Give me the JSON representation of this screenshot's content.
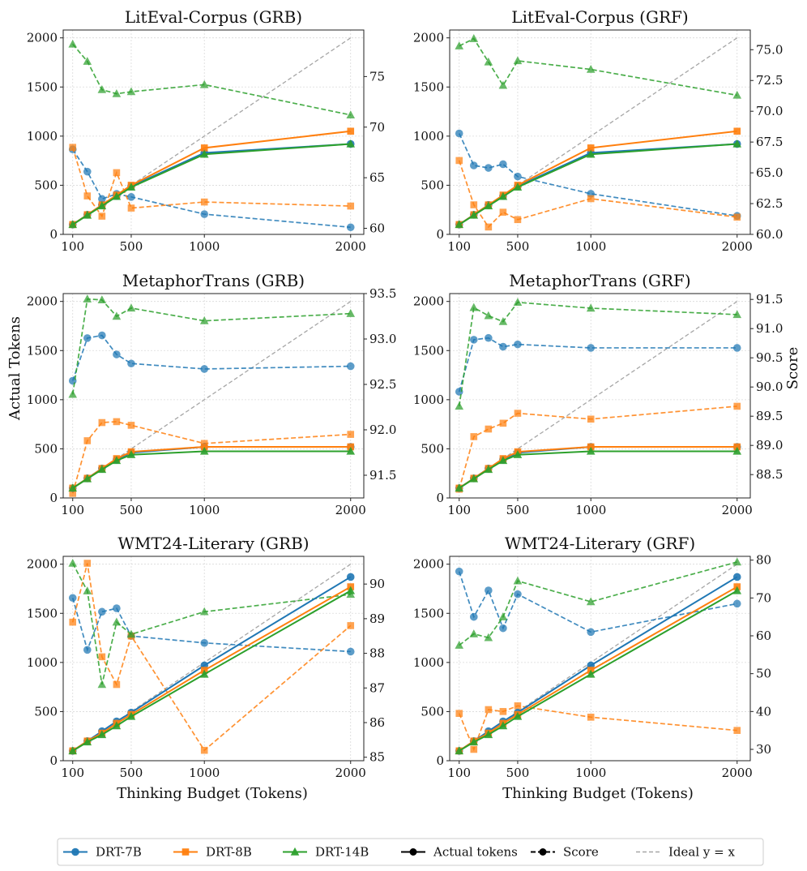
{
  "figure": {
    "ylabel_left": "Actual Tokens",
    "ylabel_right": "Score",
    "xlabel": "Thinking Budget (Tokens)"
  },
  "legend": {
    "entries": [
      {
        "label": "DRT-7B",
        "kind": "model",
        "color": "#1f77b4",
        "marker": "circle"
      },
      {
        "label": "DRT-8B",
        "kind": "model",
        "color": "#ff7f0e",
        "marker": "square"
      },
      {
        "label": "DRT-14B",
        "kind": "model",
        "color": "#2ca02c",
        "marker": "triangle"
      },
      {
        "label": "Actual tokens",
        "kind": "solid"
      },
      {
        "label": "Score",
        "kind": "dashed"
      },
      {
        "label": "Ideal y = x",
        "kind": "ideal"
      }
    ]
  },
  "chart_data": [
    {
      "type": "line",
      "title": "LitEval-Corpus (GRB)",
      "x": [
        100,
        200,
        300,
        400,
        500,
        1000,
        2000
      ],
      "xticks": [
        100,
        500,
        1000,
        2000
      ],
      "ylim": [
        0,
        2080
      ],
      "yticks": [
        0,
        500,
        1000,
        1500,
        2000
      ],
      "score_lim": [
        59.4,
        79.6
      ],
      "score_ticks": [
        60,
        65,
        70,
        75
      ],
      "actual_tokens": [
        {
          "name": "DRT-7B",
          "values": [
            100,
            200,
            300,
            390,
            490,
            830,
            920
          ]
        },
        {
          "name": "DRT-8B",
          "values": [
            100,
            200,
            300,
            400,
            500,
            880,
            1050
          ]
        },
        {
          "name": "DRT-14B",
          "values": [
            100,
            195,
            290,
            385,
            480,
            815,
            920
          ]
        }
      ],
      "score": [
        {
          "name": "DRT-7B",
          "values": [
            67.8,
            65.6,
            62.9,
            63.4,
            63.1,
            61.4,
            60.1
          ]
        },
        {
          "name": "DRT-8B",
          "values": [
            68.0,
            63.2,
            61.2,
            65.5,
            62.0,
            62.6,
            62.2
          ]
        },
        {
          "name": "DRT-14B",
          "values": [
            78.2,
            76.5,
            73.7,
            73.3,
            73.5,
            74.2,
            71.2
          ]
        }
      ]
    },
    {
      "type": "line",
      "title": "LitEval-Corpus (GRF)",
      "x": [
        100,
        200,
        300,
        400,
        500,
        1000,
        2000
      ],
      "xticks": [
        100,
        500,
        1000,
        2000
      ],
      "ylim": [
        0,
        2080
      ],
      "yticks": [
        0,
        500,
        1000,
        1500,
        2000
      ],
      "score_lim": [
        60.0,
        76.6
      ],
      "score_ticks": [
        60.0,
        62.5,
        65.0,
        67.5,
        70.0,
        72.5,
        75.0
      ],
      "actual_tokens": [
        {
          "name": "DRT-7B",
          "values": [
            100,
            200,
            300,
            390,
            490,
            830,
            920
          ]
        },
        {
          "name": "DRT-8B",
          "values": [
            100,
            200,
            300,
            400,
            500,
            880,
            1050
          ]
        },
        {
          "name": "DRT-14B",
          "values": [
            100,
            195,
            290,
            385,
            480,
            815,
            920
          ]
        }
      ],
      "score": [
        {
          "name": "DRT-7B",
          "values": [
            68.2,
            65.6,
            65.4,
            65.7,
            64.7,
            63.3,
            61.5
          ]
        },
        {
          "name": "DRT-8B",
          "values": [
            66.0,
            62.4,
            60.6,
            61.8,
            61.2,
            62.9,
            61.4
          ]
        },
        {
          "name": "DRT-14B",
          "values": [
            75.3,
            75.9,
            74.0,
            72.1,
            74.1,
            73.4,
            71.3
          ]
        }
      ]
    },
    {
      "type": "line",
      "title": "MetaphorTrans (GRB)",
      "x": [
        100,
        200,
        300,
        400,
        500,
        1000,
        2000
      ],
      "xticks": [
        100,
        500,
        1000,
        2000
      ],
      "ylim": [
        0,
        2080
      ],
      "yticks": [
        0,
        500,
        1000,
        1500,
        2000
      ],
      "score_lim": [
        91.25,
        93.5
      ],
      "score_ticks": [
        91.5,
        92.0,
        92.5,
        93.0,
        93.5
      ],
      "actual_tokens": [
        {
          "name": "DRT-7B",
          "values": [
            100,
            200,
            300,
            390,
            460,
            520,
            520
          ]
        },
        {
          "name": "DRT-8B",
          "values": [
            100,
            200,
            300,
            400,
            470,
            520,
            520
          ]
        },
        {
          "name": "DRT-14B",
          "values": [
            100,
            195,
            290,
            380,
            440,
            475,
            475
          ]
        }
      ],
      "score": [
        {
          "name": "DRT-7B",
          "values": [
            92.54,
            93.01,
            93.04,
            92.83,
            92.73,
            92.67,
            92.7
          ]
        },
        {
          "name": "DRT-8B",
          "values": [
            91.3,
            91.88,
            92.08,
            92.09,
            92.05,
            91.85,
            91.95
          ]
        },
        {
          "name": "DRT-14B",
          "values": [
            92.39,
            93.44,
            93.43,
            93.25,
            93.34,
            93.2,
            93.28
          ]
        }
      ]
    },
    {
      "type": "line",
      "title": "MetaphorTrans (GRF)",
      "x": [
        100,
        200,
        300,
        400,
        500,
        1000,
        2000
      ],
      "xticks": [
        100,
        500,
        1000,
        2000
      ],
      "ylim": [
        0,
        2080
      ],
      "yticks": [
        0,
        500,
        1000,
        1500,
        2000
      ],
      "score_lim": [
        88.1,
        91.6
      ],
      "score_ticks": [
        88.5,
        89.0,
        89.5,
        90.0,
        90.5,
        91.0,
        91.5
      ],
      "actual_tokens": [
        {
          "name": "DRT-7B",
          "values": [
            100,
            200,
            300,
            390,
            460,
            520,
            520
          ]
        },
        {
          "name": "DRT-8B",
          "values": [
            100,
            200,
            300,
            400,
            470,
            520,
            520
          ]
        },
        {
          "name": "DRT-14B",
          "values": [
            100,
            195,
            290,
            380,
            440,
            475,
            475
          ]
        }
      ],
      "score": [
        {
          "name": "DRT-7B",
          "values": [
            89.92,
            90.81,
            90.84,
            90.69,
            90.73,
            90.67,
            90.67
          ]
        },
        {
          "name": "DRT-8B",
          "values": [
            88.25,
            89.15,
            89.28,
            89.38,
            89.55,
            89.45,
            89.67
          ]
        },
        {
          "name": "DRT-14B",
          "values": [
            89.67,
            91.36,
            91.22,
            91.12,
            91.45,
            91.35,
            91.24
          ]
        }
      ]
    },
    {
      "type": "line",
      "title": "WMT24-Literary (GRB)",
      "x": [
        100,
        200,
        300,
        400,
        500,
        1000,
        2000
      ],
      "xticks": [
        100,
        500,
        1000,
        2000
      ],
      "ylim": [
        0,
        2080
      ],
      "yticks": [
        0,
        500,
        1000,
        1500,
        2000
      ],
      "score_lim": [
        84.9,
        90.8
      ],
      "score_ticks": [
        85,
        86,
        87,
        88,
        89,
        90
      ],
      "actual_tokens": [
        {
          "name": "DRT-7B",
          "values": [
            100,
            200,
            300,
            400,
            490,
            970,
            1870
          ]
        },
        {
          "name": "DRT-8B",
          "values": [
            100,
            200,
            280,
            380,
            470,
            920,
            1770
          ]
        },
        {
          "name": "DRT-14B",
          "values": [
            100,
            190,
            265,
            355,
            450,
            880,
            1730
          ]
        }
      ],
      "score": [
        {
          "name": "DRT-7B",
          "values": [
            89.6,
            88.1,
            89.2,
            89.3,
            88.5,
            88.3,
            88.05
          ]
        },
        {
          "name": "DRT-8B",
          "values": [
            88.9,
            90.6,
            87.9,
            87.1,
            88.5,
            85.2,
            88.8
          ]
        },
        {
          "name": "DRT-14B",
          "values": [
            90.6,
            89.8,
            87.1,
            88.9,
            88.55,
            89.2,
            89.7
          ]
        }
      ]
    },
    {
      "type": "line",
      "title": "WMT24-Literary (GRF)",
      "x": [
        100,
        200,
        300,
        400,
        500,
        1000,
        2000
      ],
      "xticks": [
        100,
        500,
        1000,
        2000
      ],
      "ylim": [
        0,
        2080
      ],
      "yticks": [
        0,
        500,
        1000,
        1500,
        2000
      ],
      "score_lim": [
        27.0,
        81.0
      ],
      "score_ticks": [
        30,
        40,
        50,
        60,
        70,
        80
      ],
      "actual_tokens": [
        {
          "name": "DRT-7B",
          "values": [
            100,
            200,
            300,
            400,
            490,
            970,
            1870
          ]
        },
        {
          "name": "DRT-8B",
          "values": [
            100,
            200,
            280,
            380,
            470,
            920,
            1770
          ]
        },
        {
          "name": "DRT-14B",
          "values": [
            100,
            190,
            265,
            355,
            450,
            880,
            1730
          ]
        }
      ],
      "score": [
        {
          "name": "DRT-7B",
          "values": [
            77.0,
            65.0,
            72.0,
            62.0,
            71.0,
            61.0,
            68.5
          ]
        },
        {
          "name": "DRT-8B",
          "values": [
            39.5,
            30.0,
            40.5,
            40.0,
            41.5,
            38.5,
            35.0
          ]
        },
        {
          "name": "DRT-14B",
          "values": [
            57.5,
            60.5,
            59.5,
            65.0,
            74.5,
            69.0,
            79.5
          ]
        }
      ]
    }
  ]
}
